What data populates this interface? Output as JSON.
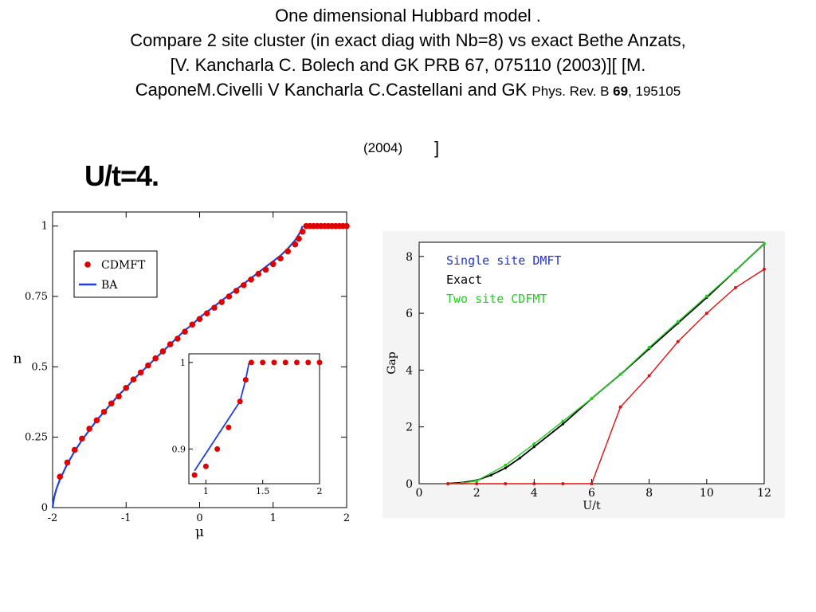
{
  "slide": {
    "title_line1": "One dimensional Hubbard model   .",
    "title_line2": "Compare 2 site cluster (in exact diag with Nb=8) vs exact Bethe Anzats,",
    "title_line3": "[V. Kancharla C. Bolech and GK  PRB 67, 075110 (2003)][ [M.",
    "title_line4_main": "CaponeM.Civelli  V Kancharla C.Castellani and GK  ",
    "title_line4_journal": "Phys. Rev. B ",
    "title_line4_vol": "69",
    "title_line4_pages": ", 195105",
    "title_year": "(2004)",
    "title_bracket": "]",
    "subtitle": "U/t=4."
  },
  "chart_data": [
    {
      "type": "scatter",
      "xlabel": "μ",
      "ylabel": "n",
      "xlim": [
        -2,
        2
      ],
      "ylim": [
        0,
        1.05
      ],
      "xticks": [
        "-2",
        "-1",
        "0",
        "1",
        "2"
      ],
      "yticks": [
        "0",
        "0.25",
        "0.5",
        "0.75",
        "1"
      ],
      "legend_position": "top-left",
      "series": [
        {
          "name": "CDMFT",
          "color": "#e00000",
          "marker": "circle",
          "x": [
            -1.9,
            -1.8,
            -1.7,
            -1.6,
            -1.5,
            -1.4,
            -1.3,
            -1.2,
            -1.1,
            -1.0,
            -0.9,
            -0.8,
            -0.7,
            -0.6,
            -0.5,
            -0.4,
            -0.3,
            -0.2,
            -0.1,
            0.0,
            0.1,
            0.2,
            0.3,
            0.4,
            0.5,
            0.6,
            0.7,
            0.8,
            0.9,
            1.0,
            1.1,
            1.2,
            1.3,
            1.35,
            1.4,
            1.45,
            1.5,
            1.55,
            1.6,
            1.65,
            1.7,
            1.75,
            1.8,
            1.85,
            1.9,
            1.95,
            2.0
          ],
          "y": [
            0.11,
            0.16,
            0.205,
            0.245,
            0.28,
            0.31,
            0.34,
            0.37,
            0.395,
            0.425,
            0.455,
            0.48,
            0.505,
            0.53,
            0.555,
            0.58,
            0.6,
            0.625,
            0.65,
            0.67,
            0.69,
            0.71,
            0.73,
            0.75,
            0.77,
            0.79,
            0.81,
            0.83,
            0.845,
            0.865,
            0.885,
            0.91,
            0.935,
            0.955,
            0.98,
            1.0,
            1.0,
            1.0,
            1.0,
            1.0,
            1.0,
            1.0,
            1.0,
            1.0,
            1.0,
            1.0,
            1.0
          ]
        },
        {
          "name": "BA",
          "color": "#1f3fe0",
          "marker": "line",
          "x": [
            -2.0,
            -1.98,
            -1.95,
            -1.9,
            -1.8,
            -1.7,
            -1.6,
            -1.5,
            -1.4,
            -1.3,
            -1.2,
            -1.1,
            -1.0,
            -0.9,
            -0.8,
            -0.7,
            -0.6,
            -0.5,
            -0.4,
            -0.3,
            -0.2,
            -0.1,
            0.0,
            0.1,
            0.2,
            0.3,
            0.4,
            0.5,
            0.6,
            0.7,
            0.8,
            0.9,
            1.0,
            1.1,
            1.2,
            1.3,
            1.35,
            1.38,
            1.4
          ],
          "y": [
            0.0,
            0.035,
            0.065,
            0.1,
            0.155,
            0.2,
            0.24,
            0.275,
            0.31,
            0.34,
            0.37,
            0.4,
            0.425,
            0.455,
            0.48,
            0.505,
            0.53,
            0.555,
            0.58,
            0.605,
            0.63,
            0.65,
            0.675,
            0.695,
            0.715,
            0.735,
            0.755,
            0.775,
            0.795,
            0.815,
            0.835,
            0.855,
            0.875,
            0.895,
            0.92,
            0.95,
            0.97,
            0.985,
            1.0
          ]
        }
      ],
      "inset": {
        "xlim": [
          0.85,
          2.0
        ],
        "ylim": [
          0.86,
          1.01
        ],
        "xticks": [
          "1",
          "1.5",
          "2"
        ],
        "yticks": [
          "0.9",
          "1"
        ],
        "series": [
          {
            "name": "CDMFT",
            "x": [
              0.9,
              1.0,
              1.1,
              1.2,
              1.3,
              1.35,
              1.4,
              1.5,
              1.6,
              1.7,
              1.8,
              1.9,
              2.0
            ],
            "y": [
              0.87,
              0.88,
              0.9,
              0.925,
              0.955,
              0.98,
              1.0,
              1.0,
              1.0,
              1.0,
              1.0,
              1.0,
              1.0
            ]
          },
          {
            "name": "BA",
            "x": [
              0.9,
              1.0,
              1.1,
              1.2,
              1.3,
              1.35,
              1.38
            ],
            "y": [
              0.875,
              0.895,
              0.915,
              0.935,
              0.955,
              0.98,
              1.0
            ]
          }
        ]
      }
    },
    {
      "type": "line",
      "xlabel": "U/t",
      "ylabel": "Gap",
      "xlim": [
        0,
        12
      ],
      "ylim": [
        0,
        8.5
      ],
      "xticks": [
        "0",
        "2",
        "4",
        "6",
        "8",
        "10",
        "12"
      ],
      "yticks": [
        "0",
        "2",
        "4",
        "6",
        "8"
      ],
      "legend_position": "top-left",
      "series": [
        {
          "name": "Single site DMFT",
          "color": "#e01010",
          "x": [
            1,
            2,
            3,
            4,
            5,
            6,
            7,
            8,
            9,
            10,
            11,
            12
          ],
          "y": [
            0,
            0,
            0,
            0,
            0,
            0,
            2.7,
            3.8,
            5.0,
            6.0,
            6.9,
            7.55
          ]
        },
        {
          "name": "Exact",
          "color": "#000000",
          "x": [
            1,
            1.5,
            2,
            2.5,
            3,
            3.5,
            4,
            5,
            6,
            7,
            8,
            9,
            10,
            11,
            12
          ],
          "y": [
            0.005,
            0.04,
            0.12,
            0.3,
            0.55,
            0.9,
            1.3,
            2.1,
            3.0,
            3.85,
            4.75,
            5.65,
            6.55,
            7.5,
            8.45
          ]
        },
        {
          "name": "Two site CDFMT",
          "color": "#20d020",
          "x": [
            1,
            1.5,
            2,
            3,
            4,
            5,
            6,
            7,
            8,
            9,
            10,
            11,
            12
          ],
          "y": [
            0,
            0.02,
            0.1,
            0.65,
            1.4,
            2.2,
            3.0,
            3.85,
            4.8,
            5.7,
            6.6,
            7.5,
            8.45
          ]
        }
      ]
    }
  ]
}
